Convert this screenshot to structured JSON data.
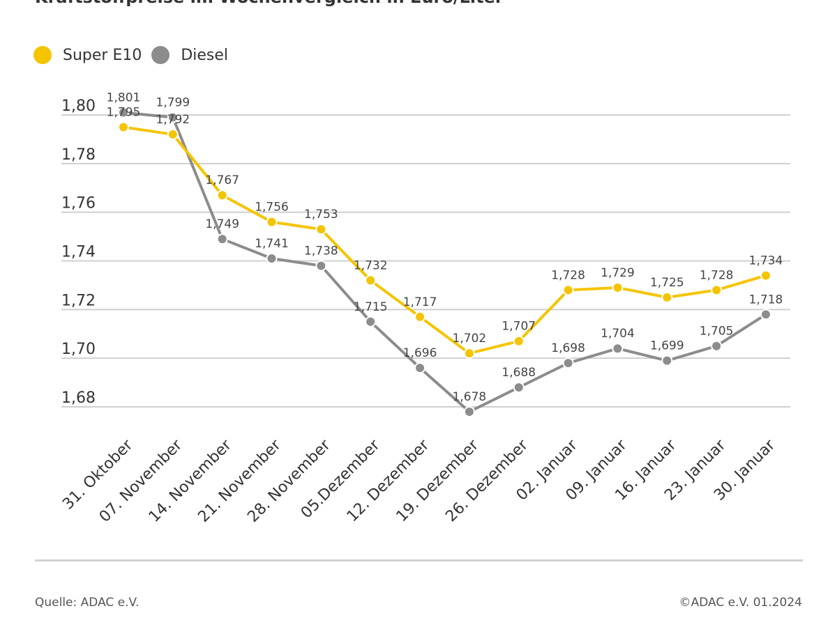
{
  "chart_data": {
    "type": "line",
    "title": "Kraftstoffpreise im Wochenvergleich in Euro/Liter",
    "categories": [
      "31. Oktober",
      "07. November",
      "14. November",
      "21. November",
      "28. November",
      "05.Dezember",
      "12. Dezember",
      "19. Dezember",
      "26. Dezember",
      "02. Januar",
      "09. Januar",
      "16. Januar",
      "23. Januar",
      "30. Januar"
    ],
    "series": [
      {
        "name": "Super E10",
        "color": "#f5c400",
        "values": [
          1.795,
          1.792,
          1.767,
          1.756,
          1.753,
          1.732,
          1.717,
          1.702,
          1.707,
          1.728,
          1.729,
          1.725,
          1.728,
          1.734
        ],
        "labels": [
          "1,795",
          "1,792",
          "1,767",
          "1,756",
          "1,753",
          "1,732",
          "1,717",
          "1,702",
          "1,707",
          "1,728",
          "1,729",
          "1,725",
          "1,728",
          "1,734"
        ]
      },
      {
        "name": "Diesel",
        "color": "#8c8c8c",
        "values": [
          1.801,
          1.799,
          1.749,
          1.741,
          1.738,
          1.715,
          1.696,
          1.678,
          1.688,
          1.698,
          1.704,
          1.699,
          1.705,
          1.718
        ],
        "labels": [
          "1,801",
          "1,799",
          "1,749",
          "1,741",
          "1,738",
          "1,715",
          "1,696",
          "1,678",
          "1,688",
          "1,698",
          "1,704",
          "1,699",
          "1,705",
          "1,718"
        ]
      }
    ],
    "y_ticks": [
      1.8,
      1.78,
      1.76,
      1.74,
      1.72,
      1.7,
      1.68
    ],
    "y_tick_labels": [
      "1,80",
      "1,78",
      "1,76",
      "1,74",
      "1,72",
      "1,70",
      "1,68"
    ],
    "ylim": [
      1.68,
      1.8
    ],
    "grid": true,
    "legend": "top-left"
  },
  "footer": {
    "source": "Quelle: ADAC e.V.",
    "copyright": "©ADAC e.V. 01.2024"
  }
}
